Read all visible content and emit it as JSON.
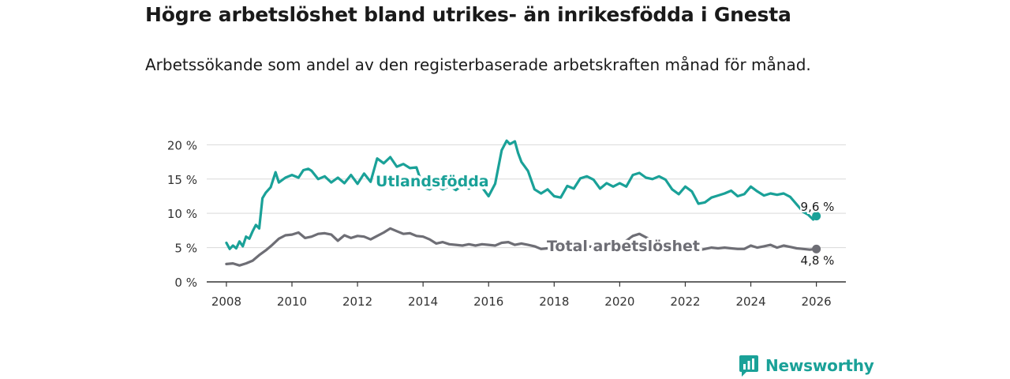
{
  "title": "Högre arbetslöshet bland utrikes- än inrikesfödda i Gnesta",
  "subtitle": "Arbetssökande som andel av den registerbaserade arbetskraften månad för månad.",
  "brand": {
    "name": "Newsworthy",
    "color": "#1aa198"
  },
  "chart_data": {
    "type": "line",
    "title": "Högre arbetslöshet bland utrikes- än inrikesfödda i Gnesta",
    "xlabel": "",
    "ylabel": "",
    "xlim": [
      2007.4,
      2026.9
    ],
    "ylim": [
      0,
      22
    ],
    "grid": true,
    "x_ticks": [
      2008,
      2010,
      2012,
      2014,
      2016,
      2018,
      2020,
      2022,
      2024,
      2026
    ],
    "x_tick_labels": [
      "2008",
      "2010",
      "2012",
      "2014",
      "2016",
      "2018",
      "2020",
      "2022",
      "2024",
      "2026"
    ],
    "y_ticks": [
      0,
      5,
      10,
      15,
      20
    ],
    "y_tick_labels": [
      "0 %",
      "5 %",
      "10 %",
      "15 %",
      "20 %"
    ],
    "series": [
      {
        "name": "Utlandsfödda",
        "color": "#1aa198",
        "end_label": "9,6 %",
        "x": [
          2008.0,
          2008.1,
          2008.2,
          2008.3,
          2008.4,
          2008.5,
          2008.6,
          2008.7,
          2008.8,
          2008.9,
          2009.0,
          2009.1,
          2009.2,
          2009.35,
          2009.5,
          2009.6,
          2009.8,
          2010.0,
          2010.2,
          2010.35,
          2010.5,
          2010.6,
          2010.8,
          2011.0,
          2011.2,
          2011.4,
          2011.6,
          2011.8,
          2012.0,
          2012.2,
          2012.4,
          2012.6,
          2012.8,
          2013.0,
          2013.2,
          2013.4,
          2013.6,
          2013.8,
          2014.0,
          2014.2,
          2014.4,
          2014.6,
          2014.8,
          2015.0,
          2015.2,
          2015.4,
          2015.6,
          2015.8,
          2016.0,
          2016.2,
          2016.4,
          2016.55,
          2016.65,
          2016.8,
          2016.9,
          2017.0,
          2017.2,
          2017.4,
          2017.6,
          2017.8,
          2018.0,
          2018.2,
          2018.4,
          2018.6,
          2018.8,
          2019.0,
          2019.2,
          2019.4,
          2019.6,
          2019.8,
          2020.0,
          2020.2,
          2020.4,
          2020.6,
          2020.8,
          2021.0,
          2021.2,
          2021.4,
          2021.6,
          2021.8,
          2022.0,
          2022.2,
          2022.4,
          2022.6,
          2022.8,
          2023.0,
          2023.2,
          2023.4,
          2023.6,
          2023.8,
          2024.0,
          2024.2,
          2024.4,
          2024.6,
          2024.8,
          2025.0,
          2025.2,
          2025.4,
          2025.6,
          2025.75,
          2025.9,
          2026.0
        ],
        "values": [
          5.7,
          4.8,
          5.3,
          4.9,
          5.9,
          5.2,
          6.6,
          6.3,
          7.4,
          8.3,
          7.8,
          12.2,
          13.0,
          13.8,
          16.0,
          14.5,
          15.2,
          15.6,
          15.2,
          16.3,
          16.5,
          16.2,
          15.0,
          15.4,
          14.5,
          15.2,
          14.4,
          15.6,
          14.3,
          15.8,
          14.6,
          18.0,
          17.3,
          18.2,
          16.8,
          17.2,
          16.6,
          16.7,
          13.8,
          13.5,
          14.2,
          13.5,
          14.0,
          13.4,
          14.1,
          13.6,
          14.3,
          13.8,
          12.5,
          14.3,
          19.2,
          20.6,
          20.1,
          20.5,
          18.8,
          17.5,
          16.2,
          13.5,
          12.9,
          13.5,
          12.5,
          12.3,
          14.0,
          13.6,
          15.1,
          15.4,
          14.9,
          13.6,
          14.4,
          13.9,
          14.4,
          13.9,
          15.6,
          15.9,
          15.2,
          15.0,
          15.4,
          14.9,
          13.5,
          12.8,
          13.9,
          13.2,
          11.4,
          11.6,
          12.3,
          12.6,
          12.9,
          13.3,
          12.5,
          12.8,
          13.9,
          13.2,
          12.6,
          12.9,
          12.7,
          12.9,
          12.4,
          11.3,
          10.2,
          9.8,
          9.1,
          9.6
        ]
      },
      {
        "name": "Total arbetslöshet",
        "color": "#6e6e75",
        "end_label": "4,8 %",
        "x": [
          2008.0,
          2008.2,
          2008.4,
          2008.6,
          2008.8,
          2009.0,
          2009.2,
          2009.4,
          2009.6,
          2009.8,
          2010.0,
          2010.2,
          2010.4,
          2010.6,
          2010.8,
          2011.0,
          2011.2,
          2011.4,
          2011.6,
          2011.8,
          2012.0,
          2012.2,
          2012.4,
          2012.6,
          2012.8,
          2013.0,
          2013.2,
          2013.4,
          2013.6,
          2013.8,
          2014.0,
          2014.2,
          2014.4,
          2014.6,
          2014.8,
          2015.0,
          2015.2,
          2015.4,
          2015.6,
          2015.8,
          2016.0,
          2016.2,
          2016.4,
          2016.6,
          2016.8,
          2017.0,
          2017.2,
          2017.4,
          2017.6,
          2017.8,
          2018.0,
          2018.2,
          2018.4,
          2018.6,
          2018.8,
          2019.0,
          2019.2,
          2019.4,
          2019.6,
          2019.8,
          2020.0,
          2020.2,
          2020.4,
          2020.6,
          2020.8,
          2021.0,
          2021.2,
          2021.4,
          2021.6,
          2021.8,
          2022.0,
          2022.2,
          2022.4,
          2022.6,
          2022.8,
          2023.0,
          2023.2,
          2023.4,
          2023.6,
          2023.8,
          2024.0,
          2024.2,
          2024.4,
          2024.6,
          2024.8,
          2025.0,
          2025.2,
          2025.4,
          2025.6,
          2025.8,
          2026.0
        ],
        "values": [
          2.6,
          2.7,
          2.4,
          2.7,
          3.1,
          3.9,
          4.6,
          5.4,
          6.3,
          6.8,
          6.9,
          7.2,
          6.4,
          6.6,
          7.0,
          7.1,
          6.9,
          6.0,
          6.8,
          6.4,
          6.7,
          6.6,
          6.2,
          6.7,
          7.2,
          7.8,
          7.4,
          7.0,
          7.1,
          6.7,
          6.6,
          6.2,
          5.6,
          5.8,
          5.5,
          5.4,
          5.3,
          5.5,
          5.3,
          5.5,
          5.4,
          5.3,
          5.7,
          5.8,
          5.4,
          5.6,
          5.4,
          5.2,
          4.8,
          4.9,
          5.0,
          5.0,
          4.9,
          5.2,
          5.0,
          5.2,
          5.1,
          4.8,
          5.1,
          5.3,
          5.5,
          6.0,
          6.7,
          7.0,
          6.5,
          6.1,
          5.8,
          5.6,
          5.4,
          5.1,
          5.0,
          4.9,
          4.6,
          4.8,
          5.0,
          4.9,
          5.0,
          4.9,
          4.8,
          4.8,
          5.3,
          5.0,
          5.2,
          5.4,
          5.0,
          5.3,
          5.1,
          4.9,
          4.8,
          4.7,
          4.8
        ]
      }
    ]
  }
}
